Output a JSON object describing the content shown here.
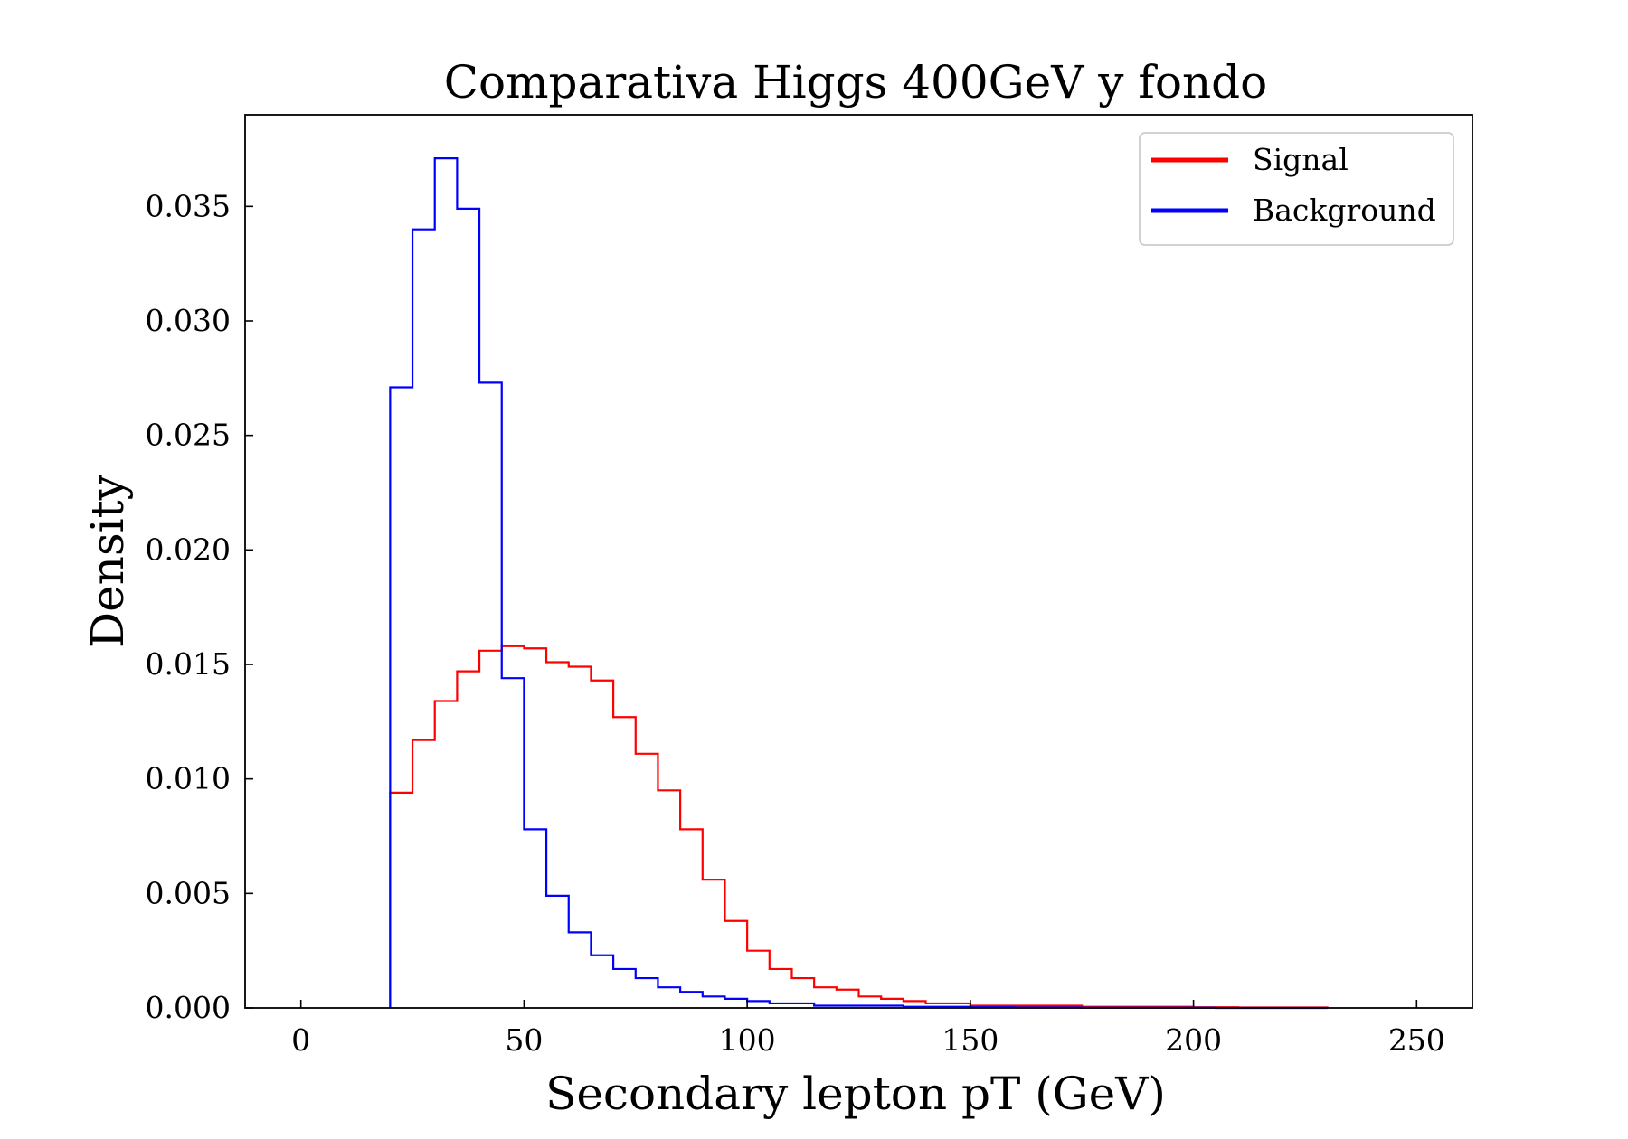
{
  "chart_data": {
    "type": "line",
    "title": "Comparativa Higgs 400GeV y fondo",
    "xlabel": "Secondary lepton pT (GeV)",
    "ylabel": "Density",
    "xlim": [
      -12.5,
      262.5
    ],
    "ylim": [
      0,
      0.039
    ],
    "grid": false,
    "legend_position": "top-right",
    "x_ticks": [
      {
        "value": 0,
        "label": "0"
      },
      {
        "value": 50,
        "label": "50"
      },
      {
        "value": 100,
        "label": "100"
      },
      {
        "value": 150,
        "label": "150"
      },
      {
        "value": 200,
        "label": "200"
      },
      {
        "value": 250,
        "label": "250"
      }
    ],
    "y_ticks": [
      {
        "value": 0,
        "label": "0.000"
      },
      {
        "value": 0.005,
        "label": "0.005"
      },
      {
        "value": 0.01,
        "label": "0.010"
      },
      {
        "value": 0.015,
        "label": "0.015"
      },
      {
        "value": 0.02,
        "label": "0.020"
      },
      {
        "value": 0.025,
        "label": "0.025"
      },
      {
        "value": 0.03,
        "label": "0.030"
      },
      {
        "value": 0.035,
        "label": "0.035"
      }
    ],
    "bin_edges": [
      20,
      25,
      30,
      35,
      40,
      45,
      50,
      55,
      60,
      65,
      70,
      75,
      80,
      85,
      90,
      95,
      100,
      105,
      110,
      115,
      120,
      125,
      130,
      135,
      140,
      145,
      150,
      155,
      160,
      165,
      170,
      175,
      180,
      185,
      190,
      195,
      200,
      205,
      210,
      215,
      220,
      225,
      230
    ],
    "series": [
      {
        "name": "Signal",
        "color": "#ff0000",
        "values": [
          0.0094,
          0.0117,
          0.0134,
          0.0147,
          0.0156,
          0.0158,
          0.0157,
          0.0151,
          0.0149,
          0.0143,
          0.0127,
          0.0111,
          0.0095,
          0.0078,
          0.0056,
          0.0038,
          0.0025,
          0.0017,
          0.0013,
          0.0009,
          0.0008,
          0.0005,
          0.0004,
          0.0003,
          0.0002,
          0.0002,
          0.0001,
          0.0001,
          0.0001,
          0.0001,
          0.0001,
          5e-05,
          5e-05,
          5e-05,
          5e-05,
          5e-05,
          3e-05,
          3e-05,
          2e-05,
          2e-05,
          2e-05,
          2e-05
        ]
      },
      {
        "name": "Background",
        "color": "#0000ff",
        "values": [
          0.0271,
          0.034,
          0.0371,
          0.0349,
          0.0273,
          0.0144,
          0.0078,
          0.0049,
          0.0033,
          0.0023,
          0.0017,
          0.0013,
          0.0009,
          0.0007,
          0.0005,
          0.0004,
          0.0003,
          0.0002,
          0.0002,
          0.0001,
          0.0001,
          0.0001,
          0.0001,
          5e-05,
          5e-05,
          5e-05,
          3e-05,
          3e-05,
          2e-05,
          2e-05,
          2e-05,
          1e-05,
          1e-05,
          1e-05,
          1e-05,
          1e-05,
          1e-05,
          0,
          0,
          0,
          0,
          0
        ]
      }
    ]
  }
}
